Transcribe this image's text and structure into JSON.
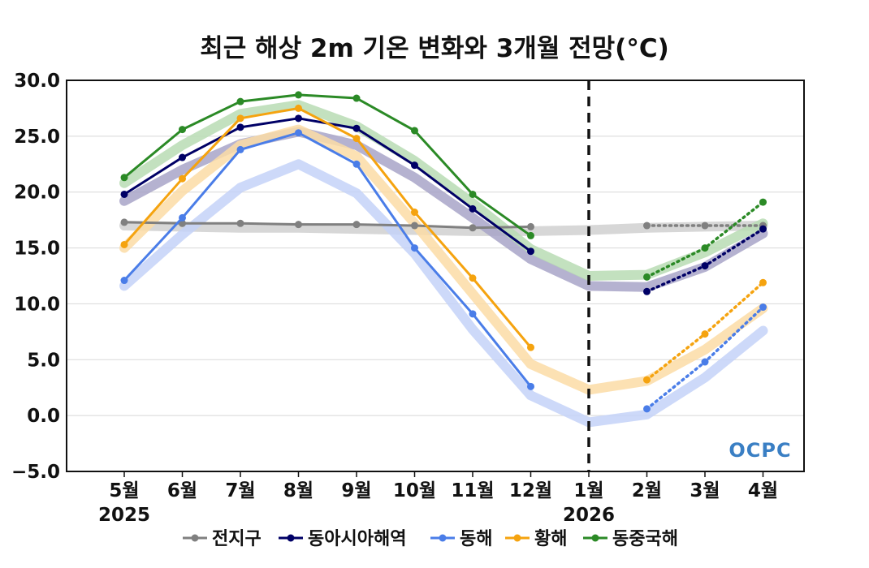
{
  "chart_data": {
    "type": "line",
    "title": "최근 해상 2m 기온 변화와 3개월 전망(°C)",
    "categories": [
      "5월",
      "6월",
      "7월",
      "8월",
      "9월",
      "10월",
      "11월",
      "12월",
      "1월",
      "2월",
      "3월",
      "4월"
    ],
    "year_labels": [
      {
        "category": "5월",
        "label": "2025"
      },
      {
        "category": "1월",
        "label": "2026"
      }
    ],
    "divider_at": "1월",
    "ylim": [
      -5,
      30
    ],
    "yticks": [
      "30.0",
      "25.0",
      "20.0",
      "15.0",
      "10.0",
      "5.0",
      "0.0",
      "−5.0"
    ],
    "ytick_values": [
      30,
      25,
      20,
      15,
      10,
      5,
      0,
      -5
    ],
    "grid": true,
    "legend_position": "bottom",
    "logo": "OCPC",
    "series": [
      {
        "name": "전지구",
        "color": "#808080",
        "band_color": "#d0d0d0",
        "observed": [
          17.3,
          17.2,
          17.2,
          17.1,
          17.1,
          17.0,
          16.8,
          16.9
        ],
        "forecast": [
          17.0,
          17.0,
          17.0
        ],
        "climatology": [
          17.0,
          16.9,
          16.8,
          16.8,
          16.7,
          16.6,
          16.5,
          16.5,
          16.6,
          16.8,
          16.9,
          17.0
        ]
      },
      {
        "name": "동아시아해역",
        "color": "#000066",
        "band_color": "#a8a4c8",
        "observed": [
          19.8,
          23.1,
          25.8,
          26.6,
          25.7,
          22.4,
          18.5,
          14.7
        ],
        "forecast": [
          11.1,
          13.4,
          16.7
        ],
        "climatology": [
          19.2,
          22.0,
          24.3,
          25.4,
          24.2,
          21.3,
          17.7,
          14.0,
          11.6,
          11.5,
          13.3,
          16.3
        ]
      },
      {
        "name": "동해",
        "color": "#4a7de8",
        "band_color": "#c4d2f8",
        "observed": [
          12.1,
          17.7,
          23.8,
          25.3,
          22.5,
          15.0,
          9.1,
          2.6
        ],
        "forecast": [
          0.6,
          4.8,
          9.7
        ],
        "climatology": [
          11.6,
          16.2,
          20.4,
          22.5,
          19.9,
          14.5,
          7.7,
          1.8,
          -0.6,
          0.1,
          3.4,
          7.6
        ]
      },
      {
        "name": "황해",
        "color": "#f5a30f",
        "band_color": "#fbdca6",
        "observed": [
          15.3,
          21.2,
          26.6,
          27.5,
          24.8,
          18.2,
          12.3,
          6.1
        ],
        "forecast": [
          3.2,
          7.3,
          11.9
        ],
        "climatology": [
          15.0,
          20.1,
          24.2,
          25.6,
          23.2,
          17.2,
          10.9,
          4.6,
          2.3,
          3.1,
          5.9,
          9.6
        ]
      },
      {
        "name": "동중국해",
        "color": "#2b8a26",
        "band_color": "#b8dcb4",
        "observed": [
          21.3,
          25.6,
          28.1,
          28.7,
          28.4,
          25.5,
          19.8,
          16.1
        ],
        "forecast": [
          12.4,
          15.0,
          19.1
        ],
        "climatology": [
          20.8,
          24.2,
          27.0,
          27.8,
          25.9,
          22.8,
          19.0,
          14.9,
          12.5,
          12.6,
          14.6,
          17.2
        ]
      }
    ]
  }
}
